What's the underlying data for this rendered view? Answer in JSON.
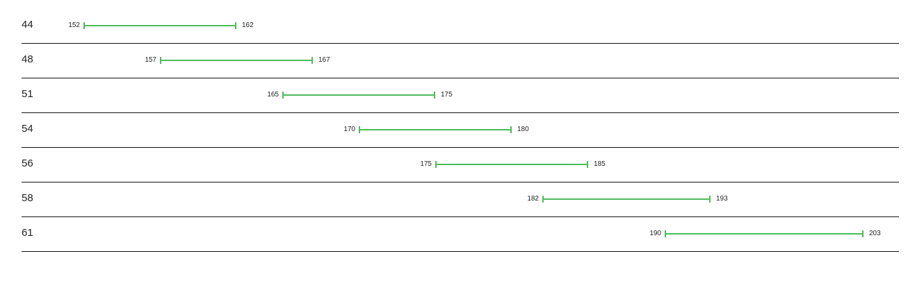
{
  "chart_data": {
    "type": "range",
    "bar_color": "#4cbb5a",
    "categories": [
      "44",
      "48",
      "51",
      "54",
      "56",
      "58",
      "61"
    ],
    "ranges": [
      [
        152,
        162
      ],
      [
        157,
        167
      ],
      [
        165,
        175
      ],
      [
        170,
        180
      ],
      [
        175,
        185
      ],
      [
        182,
        193
      ],
      [
        190,
        203
      ]
    ]
  }
}
